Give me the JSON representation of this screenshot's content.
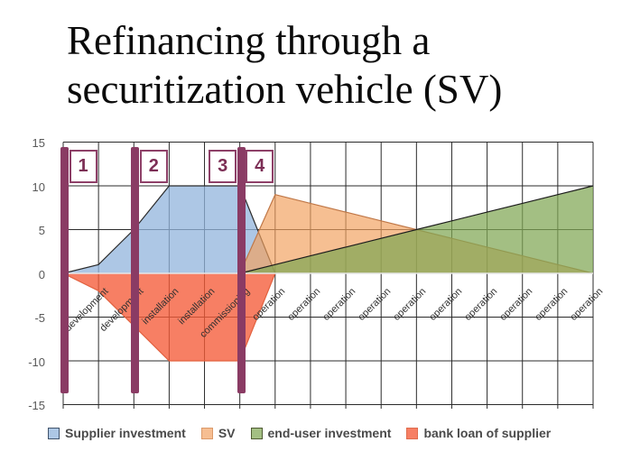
{
  "title": {
    "line1": "Refinancing through a",
    "line2": "securitization vehicle (SV)"
  },
  "chart_data": {
    "type": "area",
    "title": "",
    "xlabel": "",
    "ylabel": "",
    "ylim": [
      -15,
      15
    ],
    "yticks": [
      15,
      10,
      5,
      0,
      -5,
      -10,
      -15
    ],
    "grid": true,
    "legend_position": "bottom",
    "categories": [
      "development",
      "development",
      "installation",
      "installation",
      "commissioning",
      "operation",
      "operation",
      "operation",
      "operation",
      "operation",
      "operation",
      "operation",
      "operation",
      "operation",
      "operation"
    ],
    "x_note": "series values are sampled at the 16 category boundaries (start of first period through end of last period)",
    "series": [
      {
        "name": "Supplier investment",
        "fill": "#92B4DC",
        "fill_opacity": 0.75,
        "stroke": "#2B2B2B",
        "swatch": "#ADC7E5",
        "swatch_border": "#41536B",
        "values": [
          0,
          1,
          5,
          10,
          10,
          10,
          0,
          0,
          0,
          0,
          0,
          0,
          0,
          0,
          0,
          0
        ]
      },
      {
        "name": "SV",
        "fill": "#F2A05F",
        "fill_opacity": 0.68,
        "stroke": "#C07848",
        "swatch": "#F6BE92",
        "swatch_border": "#DB9A6A",
        "values": [
          0,
          0,
          0,
          0,
          0,
          0,
          9,
          8,
          7,
          6,
          5,
          4,
          3,
          2,
          1,
          0
        ]
      },
      {
        "name": "end-user investment",
        "fill": "#7FA653",
        "fill_opacity": 0.72,
        "stroke": "#1C1C1C",
        "swatch": "#A3BF83",
        "swatch_border": "#4F5B33",
        "values": [
          0,
          0,
          0,
          0,
          0,
          0,
          1,
          2,
          3,
          4,
          5,
          6,
          7,
          8,
          9,
          10
        ]
      },
      {
        "name": "bank loan of supplier",
        "fill": "#F55B38",
        "fill_opacity": 0.78,
        "stroke": "#E2613F",
        "swatch": "#F77F64",
        "swatch_border": "#DF6D4E",
        "values": [
          0,
          -2,
          -6,
          -10,
          -10,
          -10,
          0,
          0,
          0,
          0,
          0,
          0,
          0,
          0,
          0,
          0
        ]
      }
    ]
  },
  "markers": {
    "bar_color": "#8A3B64",
    "badge_border_color": "#8E4068",
    "badge_text_color": "#7C2E55",
    "bars": [
      {
        "at_boundary": 0
      },
      {
        "at_boundary": 2
      },
      {
        "at_boundary": 5
      }
    ],
    "badges": [
      {
        "text": "1",
        "at_boundary": 0,
        "side": "right"
      },
      {
        "text": "2",
        "at_boundary": 2,
        "side": "right"
      },
      {
        "text": "3",
        "at_boundary": 5,
        "side": "left"
      },
      {
        "text": "4",
        "at_boundary": 5,
        "side": "right"
      }
    ]
  }
}
